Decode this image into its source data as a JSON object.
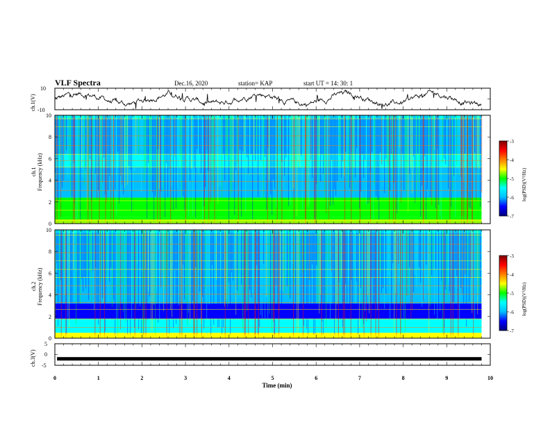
{
  "header": {
    "title": "VLF Spectra",
    "date": "Dec.16, 2020",
    "station": "station= KAP",
    "start": "start  UT =   14: 30: 1"
  },
  "colorscale": {
    "stops": [
      "#000080",
      "#0000ff",
      "#00bfff",
      "#00ffff",
      "#00ff00",
      "#ffff00",
      "#ff8000",
      "#ff0000",
      "#800000"
    ],
    "ticks": [
      "-3",
      "-4",
      "-5",
      "-6",
      "-7"
    ],
    "label": "log(PSD)(V²/Hz)"
  },
  "xaxis": {
    "label": "Time (min)",
    "ticks": [
      "0",
      "1",
      "2",
      "3",
      "4",
      "5",
      "6",
      "7",
      "8",
      "9",
      "10"
    ]
  },
  "chart_data": [
    {
      "type": "line",
      "panel": "ch1-waveform",
      "ylabel": "ch.1(V)",
      "yticks": [
        "10",
        "-10"
      ],
      "ylim": [
        -10,
        10
      ],
      "xlim": [
        0,
        10
      ],
      "trace_color": "#000000",
      "description_values": "noisy waveform fluctuating roughly between -8 and 8 V over 0-9.8 min"
    },
    {
      "type": "heatmap",
      "panel": "ch1-spectrogram",
      "ylabel": "ch.1\nFrequency (kHz)",
      "yticks": [
        "10",
        "8",
        "6",
        "4",
        "2",
        "0"
      ],
      "ylim": [
        0,
        10
      ],
      "xlim": [
        0,
        9.8
      ],
      "zlim": [
        -7,
        -3
      ],
      "bands": [
        {
          "from": 0.0,
          "to": 0.6,
          "level": -4.8
        },
        {
          "from": 0.6,
          "to": 2.4,
          "level": -5.0
        },
        {
          "from": 2.4,
          "to": 3.2,
          "level": -5.6
        },
        {
          "from": 3.2,
          "to": 5.2,
          "level": -5.9
        },
        {
          "from": 5.2,
          "to": 6.4,
          "level": -5.4
        },
        {
          "from": 6.4,
          "to": 9.7,
          "level": -5.8
        },
        {
          "from": 9.7,
          "to": 10.0,
          "level": -5.2
        }
      ]
    },
    {
      "type": "heatmap",
      "panel": "ch2-spectrogram",
      "ylabel": "ch.2\nFrequency (kHz)",
      "yticks": [
        "10",
        "8",
        "6",
        "4",
        "2",
        "0"
      ],
      "ylim": [
        0,
        10
      ],
      "xlim": [
        0,
        9.8
      ],
      "zlim": [
        -7,
        -3
      ],
      "bands": [
        {
          "from": 0.0,
          "to": 0.5,
          "level": -4.2
        },
        {
          "from": 0.5,
          "to": 1.8,
          "level": -5.1
        },
        {
          "from": 1.8,
          "to": 3.2,
          "level": -6.1
        },
        {
          "from": 3.2,
          "to": 4.8,
          "level": -5.6
        },
        {
          "from": 4.8,
          "to": 9.7,
          "level": -5.7
        },
        {
          "from": 9.7,
          "to": 10.0,
          "level": -5.3
        }
      ]
    },
    {
      "type": "line",
      "panel": "ch3-waveform",
      "ylabel": "ch.3(V)",
      "yticks": [
        "5",
        "0",
        "-5"
      ],
      "ylim": [
        -5,
        5
      ],
      "xlim": [
        0,
        10
      ],
      "trace_color": "#000000",
      "description_values": "dense noisy band around -2 V over 0-9.8 min"
    }
  ]
}
